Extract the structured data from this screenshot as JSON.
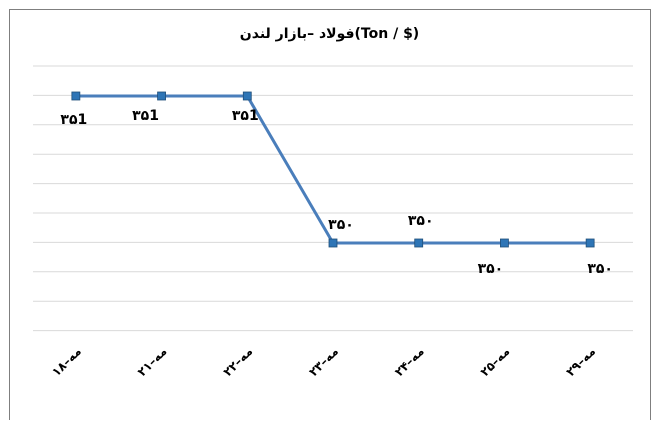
{
  "chart_data": {
    "type": "line",
    "title": "فولاد –بازار لندن(Ton / $)",
    "categories": [
      "۱۸–مه",
      "۲۱–مه",
      "۲۲–مه",
      "۲۳–مه",
      "۲۴–مه",
      "۲۵–مه",
      "۲۹–مه"
    ],
    "values": [
      351,
      351,
      351,
      350,
      350,
      350,
      350
    ],
    "data_labels": [
      "۳۵1",
      "۳۵1",
      "۳۵1",
      "۳۵۰",
      "۳۵۰",
      "۳۵۰",
      "۳۵۰"
    ],
    "ylim": [
      349.5,
      351.25
    ],
    "grid": true,
    "legend": "none",
    "line_color": "#4a7ebb",
    "marker_color": "#2e75b6"
  }
}
